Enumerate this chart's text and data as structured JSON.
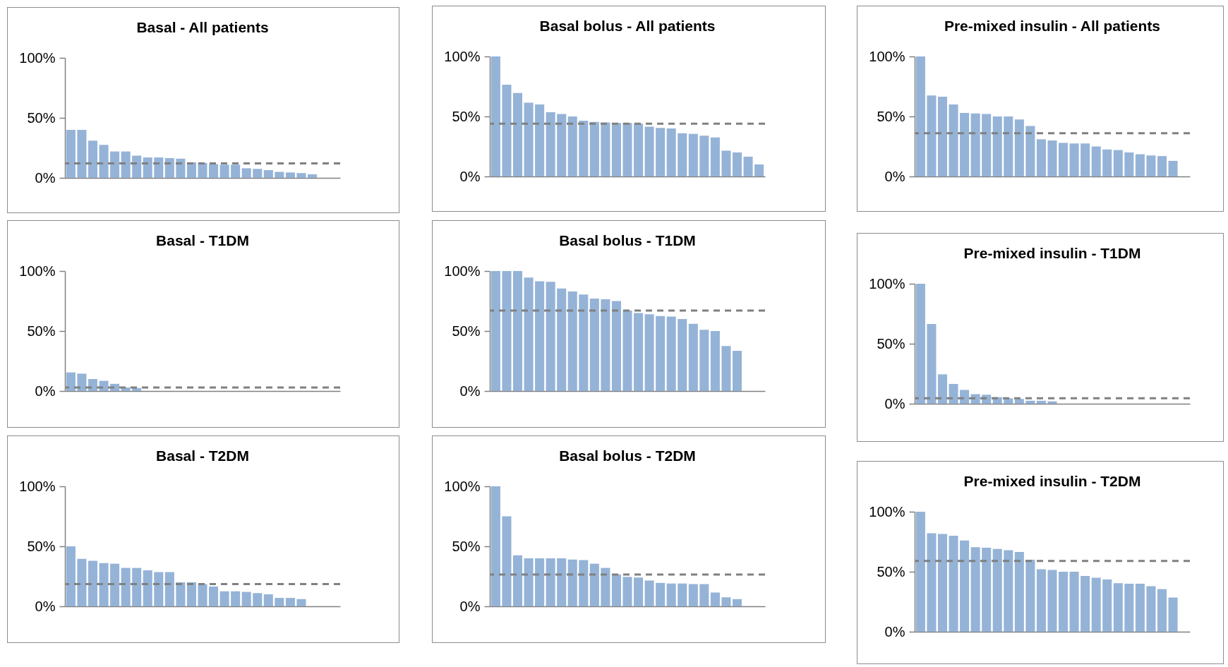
{
  "chart_data": [
    {
      "type": "bar",
      "title": "Basal - All patients",
      "categories": [
        null,
        null,
        null,
        null,
        null,
        null,
        null,
        null,
        null,
        null,
        null,
        null,
        null,
        null,
        null,
        null,
        null,
        null,
        null,
        null,
        null,
        null,
        null,
        null,
        null
      ],
      "values": [
        40,
        40,
        31,
        27.5,
        22,
        22,
        18.5,
        17,
        17,
        16.5,
        16,
        13,
        12.5,
        11.5,
        11,
        11,
        8,
        7.5,
        6.5,
        5,
        4.5,
        4,
        3,
        null,
        null
      ],
      "color": "#95b3d7",
      "ylim": [
        0,
        100
      ],
      "yticks": [
        {
          "value": 0,
          "label": "0%"
        },
        {
          "value": 50,
          "label": "50%"
        },
        {
          "value": 100,
          "label": "100%"
        }
      ],
      "ref_lines": [
        {
          "axis": "y",
          "value": 12,
          "color": "#808080",
          "line_style": "dashed"
        }
      ]
    },
    {
      "type": "bar",
      "title": "Basal bolus - All patients",
      "categories": [
        null,
        null,
        null,
        null,
        null,
        null,
        null,
        null,
        null,
        null,
        null,
        null,
        null,
        null,
        null,
        null,
        null,
        null,
        null,
        null,
        null,
        null,
        null,
        null,
        null
      ],
      "values": [
        100,
        76.5,
        69.5,
        61.5,
        60,
        53.5,
        52,
        50,
        46.5,
        45.5,
        45,
        44.5,
        44.5,
        44,
        41.5,
        40.5,
        40,
        36,
        35.5,
        34,
        32.5,
        21.5,
        20,
        16.5,
        10
      ],
      "color": "#95b3d7",
      "ylim": [
        0,
        100
      ],
      "yticks": [
        {
          "value": 0,
          "label": "0%"
        },
        {
          "value": 50,
          "label": "50%"
        },
        {
          "value": 100,
          "label": "100%"
        }
      ],
      "ref_lines": [
        {
          "axis": "y",
          "value": 44,
          "color": "#808080",
          "line_style": "dashed"
        }
      ]
    },
    {
      "type": "bar",
      "title": "Pre-mixed insulin -  All patients",
      "categories": [
        null,
        null,
        null,
        null,
        null,
        null,
        null,
        null,
        null,
        null,
        null,
        null,
        null,
        null,
        null,
        null,
        null,
        null,
        null,
        null,
        null,
        null,
        null,
        null,
        null
      ],
      "values": [
        100,
        67.5,
        66.5,
        60,
        53,
        52.5,
        52,
        50,
        50,
        47.5,
        42,
        31,
        30,
        28,
        27.5,
        27.5,
        25,
        22.5,
        22,
        20,
        18.5,
        17.5,
        17,
        13,
        null
      ],
      "color": "#95b3d7",
      "ylim": [
        0,
        100
      ],
      "yticks": [
        {
          "value": 0,
          "label": "0%"
        },
        {
          "value": 50,
          "label": "50%"
        },
        {
          "value": 100,
          "label": "100%"
        }
      ],
      "ref_lines": [
        {
          "axis": "y",
          "value": 36,
          "color": "#808080",
          "line_style": "dashed"
        }
      ]
    },
    {
      "type": "bar",
      "title": "Basal - T1DM",
      "categories": [
        null,
        null,
        null,
        null,
        null,
        null,
        null,
        null,
        null,
        null,
        null,
        null,
        null,
        null,
        null,
        null,
        null,
        null,
        null,
        null,
        null,
        null,
        null,
        null,
        null
      ],
      "values": [
        15.5,
        14.5,
        10,
        8.5,
        6,
        3,
        2.5,
        null,
        null,
        null,
        null,
        null,
        null,
        null,
        null,
        null,
        null,
        null,
        null,
        null,
        null,
        null,
        null,
        null,
        null
      ],
      "color": "#95b3d7",
      "ylim": [
        0,
        100
      ],
      "yticks": [
        {
          "value": 0,
          "label": "0%"
        },
        {
          "value": 50,
          "label": "50%"
        },
        {
          "value": 100,
          "label": "100%"
        }
      ],
      "ref_lines": [
        {
          "axis": "y",
          "value": 3,
          "color": "#808080",
          "line_style": "dashed"
        }
      ]
    },
    {
      "type": "bar",
      "title": "Basal bolus - T1DM",
      "categories": [
        null,
        null,
        null,
        null,
        null,
        null,
        null,
        null,
        null,
        null,
        null,
        null,
        null,
        null,
        null,
        null,
        null,
        null,
        null,
        null,
        null,
        null,
        null,
        null,
        null
      ],
      "values": [
        100,
        100,
        100,
        94.5,
        91.5,
        91,
        85.5,
        83,
        80.5,
        77,
        76.5,
        75,
        67,
        65,
        64,
        62.5,
        62,
        60,
        56,
        51,
        50,
        37.5,
        33.5,
        null,
        null
      ],
      "color": "#95b3d7",
      "ylim": [
        0,
        100
      ],
      "yticks": [
        {
          "value": 0,
          "label": "0%"
        },
        {
          "value": 50,
          "label": "50%"
        },
        {
          "value": 100,
          "label": "100%"
        }
      ],
      "ref_lines": [
        {
          "axis": "y",
          "value": 67,
          "color": "#808080",
          "line_style": "dashed"
        }
      ]
    },
    {
      "type": "bar",
      "title": "Pre-mixed insulin - T1DM",
      "categories": [
        null,
        null,
        null,
        null,
        null,
        null,
        null,
        null,
        null,
        null,
        null,
        null,
        null,
        null,
        null,
        null,
        null,
        null,
        null,
        null,
        null,
        null,
        null,
        null,
        null
      ],
      "values": [
        100,
        66.5,
        24.5,
        16.5,
        11.5,
        8,
        7.5,
        5.5,
        4.5,
        4,
        2.5,
        2.5,
        2,
        null,
        null,
        null,
        null,
        null,
        null,
        null,
        null,
        null,
        null,
        null,
        null
      ],
      "color": "#95b3d7",
      "ylim": [
        0,
        100
      ],
      "yticks": [
        {
          "value": 0,
          "label": "0%"
        },
        {
          "value": 50,
          "label": "50%"
        },
        {
          "value": 100,
          "label": "100%"
        }
      ],
      "ref_lines": [
        {
          "axis": "y",
          "value": 4.5,
          "color": "#808080",
          "line_style": "dashed"
        }
      ]
    },
    {
      "type": "bar",
      "title": "Basal - T2DM",
      "categories": [
        null,
        null,
        null,
        null,
        null,
        null,
        null,
        null,
        null,
        null,
        null,
        null,
        null,
        null,
        null,
        null,
        null,
        null,
        null,
        null,
        null,
        null,
        null,
        null,
        null
      ],
      "values": [
        50,
        39.5,
        38,
        36,
        35.5,
        32,
        32,
        30,
        28.5,
        28.5,
        20,
        20,
        18.5,
        16.5,
        12.5,
        12.5,
        12,
        11,
        10,
        7,
        7,
        6,
        null,
        null,
        null
      ],
      "color": "#95b3d7",
      "ylim": [
        0,
        100
      ],
      "yticks": [
        {
          "value": 0,
          "label": "0%"
        },
        {
          "value": 50,
          "label": "50%"
        },
        {
          "value": 100,
          "label": "100%"
        }
      ],
      "ref_lines": [
        {
          "axis": "y",
          "value": 18.5,
          "color": "#808080",
          "line_style": "dashed"
        }
      ]
    },
    {
      "type": "bar",
      "title": "Basal bolus - T2DM",
      "categories": [
        null,
        null,
        null,
        null,
        null,
        null,
        null,
        null,
        null,
        null,
        null,
        null,
        null,
        null,
        null,
        null,
        null,
        null,
        null,
        null,
        null,
        null,
        null,
        null,
        null
      ],
      "values": [
        100,
        75,
        42.5,
        40,
        40,
        40,
        40,
        39,
        38.5,
        35.5,
        32,
        26.5,
        24.5,
        24,
        21.5,
        19.5,
        19,
        19,
        18.5,
        18.5,
        11.5,
        7.5,
        6,
        null,
        null
      ],
      "color": "#95b3d7",
      "ylim": [
        0,
        100
      ],
      "yticks": [
        {
          "value": 0,
          "label": "0%"
        },
        {
          "value": 50,
          "label": "50%"
        },
        {
          "value": 100,
          "label": "100%"
        }
      ],
      "ref_lines": [
        {
          "axis": "y",
          "value": 26.5,
          "color": "#808080",
          "line_style": "dashed"
        }
      ]
    },
    {
      "type": "bar",
      "title": "Pre-mixed insulin - T2DM",
      "categories": [
        null,
        null,
        null,
        null,
        null,
        null,
        null,
        null,
        null,
        null,
        null,
        null,
        null,
        null,
        null,
        null,
        null,
        null,
        null,
        null,
        null,
        null,
        null,
        null,
        null
      ],
      "values": [
        100,
        82,
        81.5,
        80,
        76,
        70.5,
        70,
        69,
        68,
        66.5,
        60,
        52,
        51.5,
        50,
        50,
        46.5,
        45,
        43.5,
        40.5,
        40,
        40,
        38,
        35.5,
        28.5,
        null
      ],
      "color": "#95b3d7",
      "ylim": [
        0,
        100
      ],
      "yticks": [
        {
          "value": 0,
          "label": "0%"
        },
        {
          "value": 50,
          "label": "50%"
        },
        {
          "value": 100,
          "label": "100%"
        }
      ],
      "ref_lines": [
        {
          "axis": "y",
          "value": 59,
          "color": "#808080",
          "line_style": "dashed"
        }
      ]
    }
  ]
}
